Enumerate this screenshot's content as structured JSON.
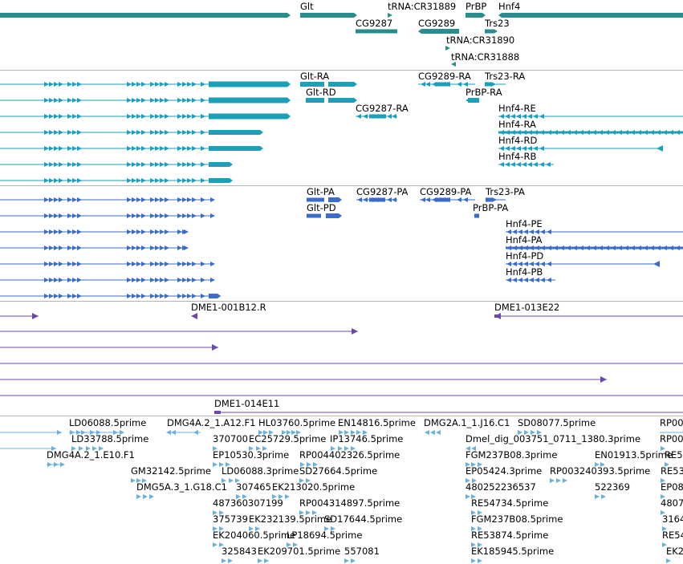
{
  "colors": {
    "gene": "#2a8c8c",
    "transcript": "#1aa0b8",
    "protein": "#3a6cc8",
    "clone": "#6a48a8",
    "est": "#6ab0dc",
    "separator": "#b4b4b4"
  },
  "genes": [
    {
      "label": "Glt"
    },
    {
      "label": "tRNA:CR31889"
    },
    {
      "label": "PrBP"
    },
    {
      "label": "Hnf4"
    },
    {
      "label": "CG9287"
    },
    {
      "label": "CG9289"
    },
    {
      "label": "Trs23"
    },
    {
      "label": "tRNA:CR31890"
    },
    {
      "label": "tRNA:CR31888"
    }
  ],
  "transcripts": [
    {
      "label": "Glt-RA"
    },
    {
      "label": "CG9289-RA"
    },
    {
      "label": "Trs23-RA"
    },
    {
      "label": "Glt-RD"
    },
    {
      "label": "PrBP-RA"
    },
    {
      "label": "CG9287-RA"
    },
    {
      "label": "Hnf4-RE"
    },
    {
      "label": "Hnf4-RA"
    },
    {
      "label": "Hnf4-RD"
    },
    {
      "label": "Hnf4-RB"
    }
  ],
  "proteins": [
    {
      "label": "Glt-PA"
    },
    {
      "label": "CG9287-PA"
    },
    {
      "label": "CG9289-PA"
    },
    {
      "label": "Trs23-PA"
    },
    {
      "label": "Glt-PD"
    },
    {
      "label": "PrBP-PA"
    },
    {
      "label": "Hnf4-PE"
    },
    {
      "label": "Hnf4-PA"
    },
    {
      "label": "Hnf4-PD"
    },
    {
      "label": "Hnf4-PB"
    }
  ],
  "clones": [
    {
      "label": "DME1-001B12.R"
    },
    {
      "label": "DME1-013E22"
    },
    {
      "label": "DME1-014E11"
    }
  ],
  "ests": [
    {
      "label": "LD06088.5prime"
    },
    {
      "label": "DMG4A.2_1.A12.F1"
    },
    {
      "label": "HL03760.5prime"
    },
    {
      "label": "EN14816.5prime"
    },
    {
      "label": "DMG2A.1_1.J16.C1"
    },
    {
      "label": "SD08077.5prime"
    },
    {
      "label": "RP00"
    },
    {
      "label": "LD33788.5prime"
    },
    {
      "label": "370700"
    },
    {
      "label": "EC25729.5prime"
    },
    {
      "label": "IP13746.5prime"
    },
    {
      "label": "Dmel_dig_003751_0711_1380.3prime"
    },
    {
      "label": "RP00"
    },
    {
      "label": "DMG4A.2_1.E10.F1"
    },
    {
      "label": "EP10530.3prime"
    },
    {
      "label": "RP004402326.5prime"
    },
    {
      "label": "FGM237B08.3prime"
    },
    {
      "label": "EN01913.5prime"
    },
    {
      "label": "RE5"
    },
    {
      "label": "GM32142.5prime"
    },
    {
      "label": "LD06088.3prime"
    },
    {
      "label": "SD27664.5prime"
    },
    {
      "label": "EP05424.3prime"
    },
    {
      "label": "RP003240393.5prime"
    },
    {
      "label": "RE53"
    },
    {
      "label": "DMG5A.3_1.G18.C1"
    },
    {
      "label": "307465"
    },
    {
      "label": "EK213020.5prime"
    },
    {
      "label": "480252236537"
    },
    {
      "label": "522369"
    },
    {
      "label": "EP08"
    },
    {
      "label": "487360307199"
    },
    {
      "label": "RP004314897.5prime"
    },
    {
      "label": "RE54734.5prime"
    },
    {
      "label": "4807"
    },
    {
      "label": "375739"
    },
    {
      "label": "EK232139.5prime"
    },
    {
      "label": "SD17644.5prime"
    },
    {
      "label": "FGM237B08.5prime"
    },
    {
      "label": "3164"
    },
    {
      "label": "EK204060.5prime"
    },
    {
      "label": "LP18694.5prime"
    },
    {
      "label": "RE53874.5prime"
    },
    {
      "label": "RE54"
    },
    {
      "label": "325843"
    },
    {
      "label": "EK209701.5prime"
    },
    {
      "label": "557081"
    },
    {
      "label": "EK185945.5prime"
    },
    {
      "label": "EK2"
    }
  ]
}
